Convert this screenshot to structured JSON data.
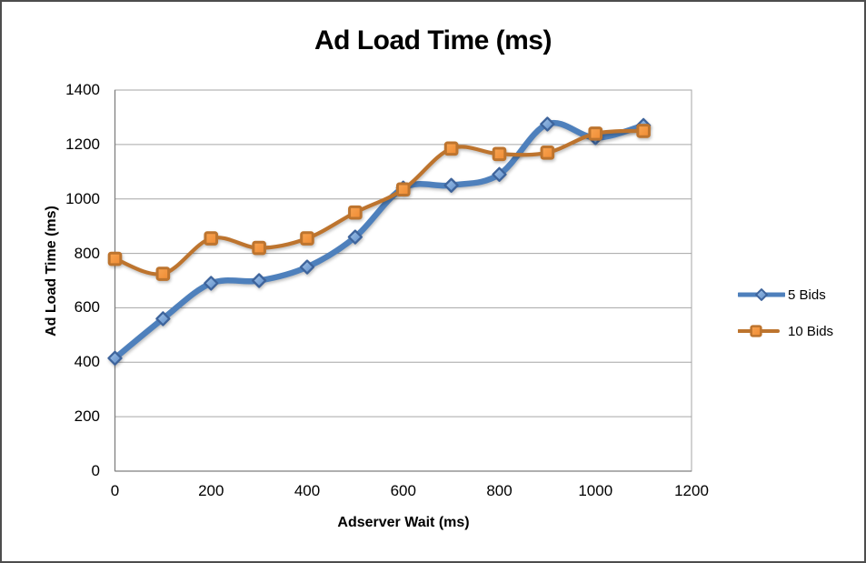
{
  "window": {
    "background": "#FFFFFF",
    "border_color": "#4D4D4D"
  },
  "chart_data": {
    "type": "line",
    "title": "Ad Load Time (ms)",
    "xlabel": "Adserver Wait (ms)",
    "ylabel": "Ad Load Time (ms)",
    "x": [
      0,
      100,
      200,
      300,
      400,
      500,
      600,
      700,
      800,
      900,
      1000,
      1100
    ],
    "series": [
      {
        "name": "5 Bids",
        "marker": "diamond",
        "line_color": "#4E80BC",
        "marker_fill_light": "#A3C4E8",
        "marker_fill_dark": "#5D8CC9",
        "marker_stroke": "#3E649C",
        "values": [
          415,
          560,
          690,
          700,
          750,
          860,
          1040,
          1050,
          1090,
          1275,
          1225,
          1270
        ]
      },
      {
        "name": "10 Bids",
        "marker": "square",
        "line_color": "#BD742E",
        "marker_fill_light": "#F8A452",
        "marker_fill_dark": "#EF8B33",
        "marker_stroke": "#C87B2F",
        "values": [
          780,
          725,
          855,
          820,
          855,
          950,
          1035,
          1185,
          1165,
          1170,
          1240,
          1250
        ]
      }
    ],
    "xlim": [
      0,
      1200
    ],
    "ylim": [
      0,
      1400
    ],
    "xticks": [
      0,
      200,
      400,
      600,
      800,
      1000,
      1200
    ],
    "yticks": [
      0,
      200,
      400,
      600,
      800,
      1000,
      1200,
      1400
    ],
    "grid": "horizontal-only",
    "gridline_color": "#A6A6A6",
    "axis_line_color": "#7F7F7F",
    "plot_border_color": "#A6A6A6",
    "legend_position": "right",
    "smooth_lines": true
  }
}
